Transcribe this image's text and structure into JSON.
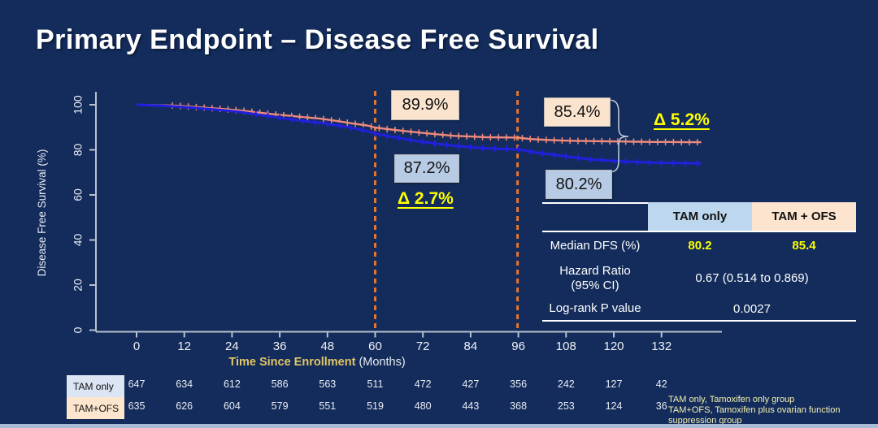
{
  "title": "Primary Endpoint – Disease Free Survival",
  "chart_data": {
    "type": "line",
    "subtype": "kaplan-meier-survival",
    "title": "",
    "xlabel_main": "Time Since Enrollment",
    "xlabel_unit": "(Months)",
    "ylabel": "Disease Free Survival (%)",
    "x_ticks": [
      0,
      12,
      24,
      36,
      48,
      60,
      72,
      84,
      96,
      108,
      120,
      132
    ],
    "y_ticks": [
      0,
      20,
      40,
      60,
      80,
      100
    ],
    "xlim": [
      0,
      147
    ],
    "ylim": [
      0,
      105
    ],
    "grid": false,
    "legend_position": "none",
    "reference_lines_months": [
      60,
      95.8
    ],
    "series": [
      {
        "name": "TAM + OFS",
        "color": "#f08a7c",
        "width": 2.4,
        "censor_start": 9,
        "censor_step": 2,
        "points": [
          [
            0,
            100
          ],
          [
            6,
            99.8
          ],
          [
            10,
            99.6
          ],
          [
            14,
            99.1
          ],
          [
            18,
            98.6
          ],
          [
            22,
            98.1
          ],
          [
            26,
            97.5
          ],
          [
            30,
            96.7
          ],
          [
            34,
            95.9
          ],
          [
            38,
            95.2
          ],
          [
            42,
            94.5
          ],
          [
            46,
            93.9
          ],
          [
            50,
            92.9
          ],
          [
            54,
            91.8
          ],
          [
            58,
            90.8
          ],
          [
            60,
            89.9
          ],
          [
            64,
            89.0
          ],
          [
            68,
            88.2
          ],
          [
            72,
            87.5
          ],
          [
            76,
            86.8
          ],
          [
            80,
            86.2
          ],
          [
            84,
            85.9
          ],
          [
            88,
            85.6
          ],
          [
            92,
            85.5
          ],
          [
            96,
            85.4
          ],
          [
            99,
            84.8
          ],
          [
            102,
            84.5
          ],
          [
            106,
            84.2
          ],
          [
            110,
            84.0
          ],
          [
            114,
            83.9
          ],
          [
            118,
            83.8
          ],
          [
            122,
            83.7
          ],
          [
            126,
            83.6
          ],
          [
            130,
            83.5
          ],
          [
            134,
            83.5
          ],
          [
            138,
            83.4
          ],
          [
            142,
            83.4
          ]
        ]
      },
      {
        "name": "TAM only",
        "color": "#2020dd",
        "width": 3,
        "censor_start": 30,
        "censor_step": 3,
        "points": [
          [
            0,
            100
          ],
          [
            6,
            99.6
          ],
          [
            10,
            99.2
          ],
          [
            14,
            98.7
          ],
          [
            18,
            98.1
          ],
          [
            22,
            97.5
          ],
          [
            26,
            96.8
          ],
          [
            30,
            95.8
          ],
          [
            34,
            94.7
          ],
          [
            38,
            93.7
          ],
          [
            42,
            92.8
          ],
          [
            46,
            92.0
          ],
          [
            50,
            91.0
          ],
          [
            54,
            89.8
          ],
          [
            58,
            88.3
          ],
          [
            60,
            87.2
          ],
          [
            64,
            85.9
          ],
          [
            68,
            84.6
          ],
          [
            72,
            83.5
          ],
          [
            76,
            82.6
          ],
          [
            80,
            81.8
          ],
          [
            84,
            81.2
          ],
          [
            88,
            80.7
          ],
          [
            92,
            80.4
          ],
          [
            96,
            80.2
          ],
          [
            99,
            79.2
          ],
          [
            102,
            78.4
          ],
          [
            106,
            77.6
          ],
          [
            110,
            76.6
          ],
          [
            114,
            75.8
          ],
          [
            118,
            75.3
          ],
          [
            122,
            74.9
          ],
          [
            126,
            74.6
          ],
          [
            130,
            74.3
          ],
          [
            134,
            74.2
          ],
          [
            138,
            74.1
          ],
          [
            142,
            74.0
          ]
        ]
      }
    ],
    "annotations": [
      {
        "id": "ofs-5yr",
        "text": "89.9%",
        "style": "peach"
      },
      {
        "id": "tam-5yr",
        "text": "87.2%",
        "style": "blue"
      },
      {
        "id": "delta-5yr",
        "text": "Δ 2.7%",
        "style": "yellow"
      },
      {
        "id": "ofs-8yr",
        "text": "85.4%",
        "style": "peach"
      },
      {
        "id": "tam-8yr",
        "text": "80.2%",
        "style": "blue"
      },
      {
        "id": "delta-8yr",
        "text": "Δ 5.2%",
        "style": "yellow"
      }
    ]
  },
  "stats_table": {
    "col_headers": [
      "TAM only",
      "TAM + OFS"
    ],
    "rows": [
      {
        "label": "Median DFS (%)",
        "tam_only": "80.2",
        "tam_ofs": "85.4"
      },
      {
        "label": "Hazard Ratio",
        "label2": "(95% CI)",
        "merged": "0.67 (0.514 to 0.869)"
      },
      {
        "label": "Log-rank P value",
        "merged": "0.0027"
      }
    ]
  },
  "risk_table": {
    "rows": [
      {
        "label": "TAM only",
        "values": [
          647,
          634,
          612,
          586,
          563,
          511,
          472,
          427,
          356,
          242,
          127,
          42
        ]
      },
      {
        "label": "TAM+OFS",
        "values": [
          635,
          626,
          604,
          579,
          551,
          519,
          480,
          443,
          368,
          253,
          124,
          36
        ]
      }
    ]
  },
  "footnote": {
    "line1": "TAM only, Tamoxifen only group",
    "line2": "TAM+OFS, Tamoxifen plus ovarian function suppression group"
  },
  "colors": {
    "background": "#132c5b",
    "salmon_curve": "#f08a7c",
    "blue_curve": "#2020dd",
    "orange_dash": "#e8752c",
    "axis": "#b8c0cc",
    "gold_axis_label": "#e3c565",
    "yellow_value": "#ffff00",
    "peach_box": "#fbe4cd",
    "blue_box": "#b7cbe5"
  }
}
